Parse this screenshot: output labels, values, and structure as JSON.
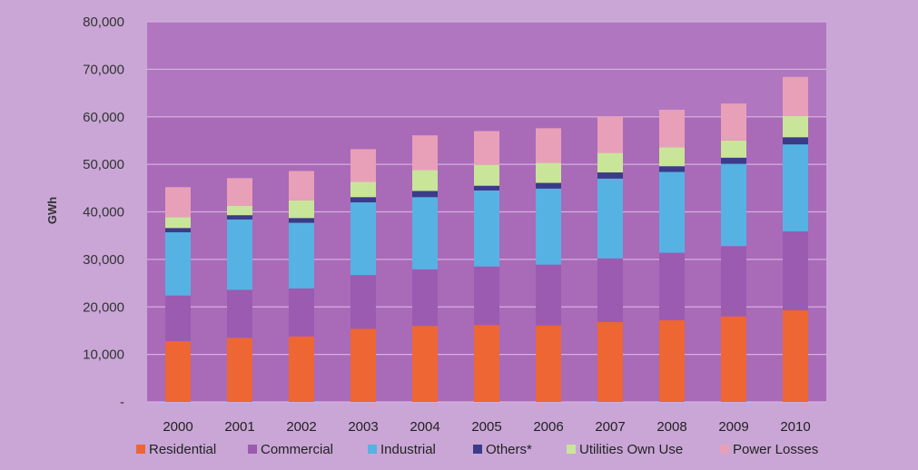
{
  "chart_data": {
    "type": "bar",
    "stacked": true,
    "title": "",
    "xlabel": "",
    "ylabel": "GWh",
    "ylim": [
      0,
      80000
    ],
    "yticks": [
      "-",
      "10,000",
      "20,000",
      "30,000",
      "40,000",
      "50,000",
      "60,000",
      "70,000",
      "80,000"
    ],
    "grid": true,
    "legend_position": "bottom",
    "categories": [
      "2000",
      "2001",
      "2002",
      "2003",
      "2004",
      "2005",
      "2006",
      "2007",
      "2008",
      "2009",
      "2010"
    ],
    "series": [
      {
        "name": "Residential",
        "color": "#ee6633",
        "values": [
          12800,
          13500,
          13800,
          15400,
          16000,
          16200,
          16100,
          16800,
          17200,
          18000,
          19300
        ]
      },
      {
        "name": "Commercial",
        "color": "#9b5bb0",
        "values": [
          9600,
          10100,
          10100,
          11300,
          11900,
          12300,
          12800,
          13400,
          14200,
          14800,
          16600
        ]
      },
      {
        "name": "Industrial",
        "color": "#56b2e3",
        "values": [
          13300,
          14800,
          13800,
          15300,
          15200,
          16000,
          16000,
          16800,
          17000,
          17300,
          18300
        ]
      },
      {
        "name": "Others*",
        "color": "#3b3b8a",
        "values": [
          900,
          900,
          1000,
          1100,
          1300,
          1000,
          1200,
          1300,
          1200,
          1300,
          1500
        ]
      },
      {
        "name": "Utilities Own Use",
        "color": "#c9e59a",
        "values": [
          2300,
          2000,
          3700,
          3200,
          4400,
          4400,
          4200,
          4100,
          4000,
          3600,
          4500
        ]
      },
      {
        "name": "Power Losses",
        "color": "#e8a0b8",
        "values": [
          6300,
          5800,
          6200,
          6900,
          7300,
          7100,
          7300,
          7700,
          7900,
          7800,
          8200
        ]
      }
    ]
  },
  "colors": {
    "page_background": "#c9a6d6",
    "plot_background": "#a96ab8",
    "band_background": "#b77fc4",
    "grid": "#d4b0de"
  }
}
